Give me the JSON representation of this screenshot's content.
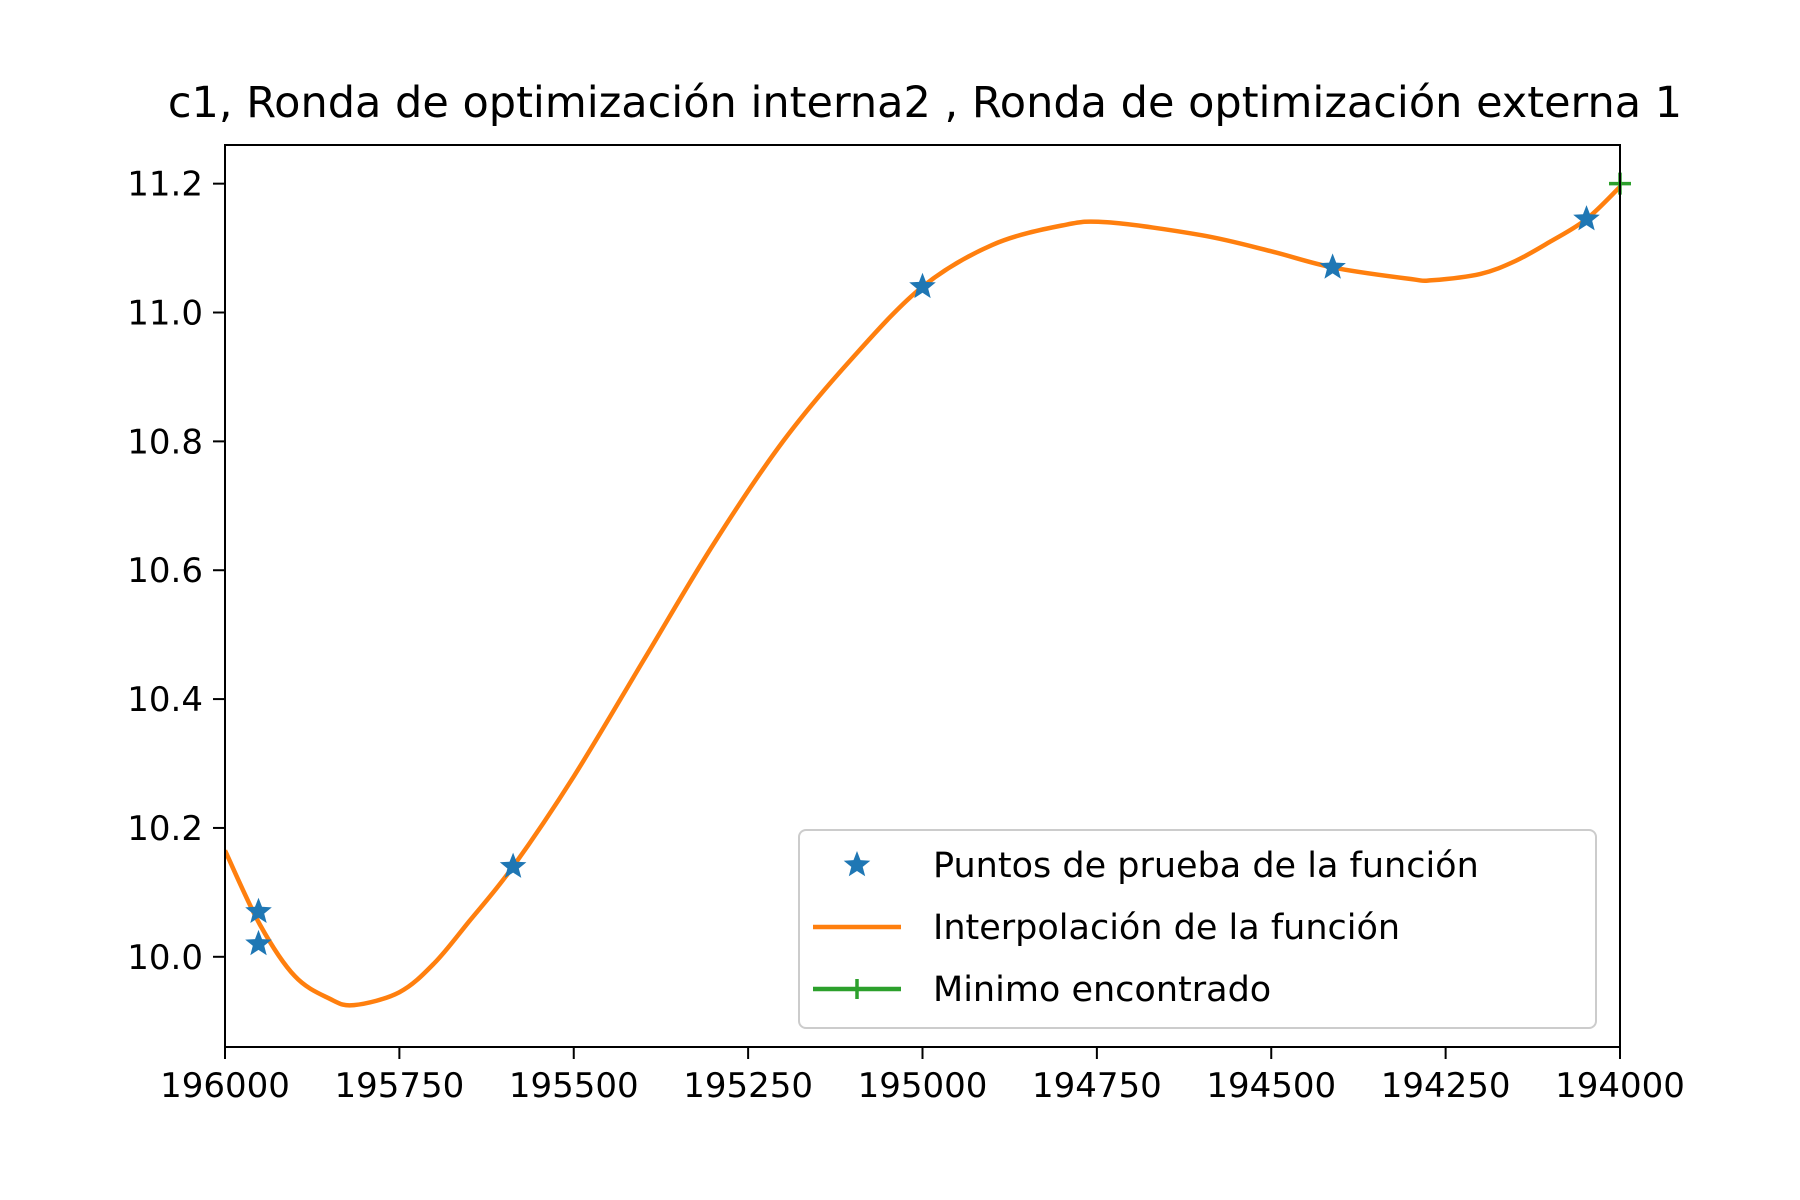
{
  "chart_data": {
    "type": "line",
    "title": "c1, Ronda de optimización interna2 , Ronda de optimización externa 1",
    "xlabel": "",
    "ylabel": "",
    "xlim": [
      196000,
      194000
    ],
    "ylim": [
      9.86,
      11.26
    ],
    "x_inverted": true,
    "grid": false,
    "legend_position": "lower-right",
    "x_ticks": [
      196000,
      195750,
      195500,
      195250,
      195000,
      194750,
      194500,
      194250,
      194000
    ],
    "x_tick_labels": [
      "196000",
      "195750",
      "195500",
      "195250",
      "195000",
      "194750",
      "194500",
      "194250",
      "194000"
    ],
    "y_ticks": [
      10.0,
      10.2,
      10.4,
      10.6,
      10.8,
      11.0,
      11.2
    ],
    "y_tick_labels": [
      "10.0",
      "10.2",
      "10.4",
      "10.6",
      "10.8",
      "11.0",
      "11.2"
    ],
    "series": [
      {
        "name": "Puntos de prueba de la función",
        "kind": "scatter",
        "marker": "star",
        "color": "#1f77b4",
        "points": [
          {
            "x": 195952,
            "y": 10.07
          },
          {
            "x": 195952,
            "y": 10.02
          },
          {
            "x": 195587,
            "y": 10.14
          },
          {
            "x": 195000,
            "y": 11.04
          },
          {
            "x": 194412,
            "y": 11.07
          },
          {
            "x": 194048,
            "y": 11.145
          }
        ]
      },
      {
        "name": "Interpolación de la función",
        "kind": "line",
        "color": "#ff7f0e",
        "points": [
          {
            "x": 196000,
            "y": 10.165
          },
          {
            "x": 195950,
            "y": 10.05
          },
          {
            "x": 195900,
            "y": 9.97
          },
          {
            "x": 195850,
            "y": 9.935
          },
          {
            "x": 195815,
            "y": 9.925
          },
          {
            "x": 195750,
            "y": 9.945
          },
          {
            "x": 195700,
            "y": 9.99
          },
          {
            "x": 195650,
            "y": 10.055
          },
          {
            "x": 195587,
            "y": 10.14
          },
          {
            "x": 195500,
            "y": 10.28
          },
          {
            "x": 195400,
            "y": 10.46
          },
          {
            "x": 195300,
            "y": 10.64
          },
          {
            "x": 195200,
            "y": 10.8
          },
          {
            "x": 195100,
            "y": 10.93
          },
          {
            "x": 195000,
            "y": 11.04
          },
          {
            "x": 194900,
            "y": 11.105
          },
          {
            "x": 194800,
            "y": 11.135
          },
          {
            "x": 194735,
            "y": 11.14
          },
          {
            "x": 194600,
            "y": 11.12
          },
          {
            "x": 194500,
            "y": 11.095
          },
          {
            "x": 194412,
            "y": 11.07
          },
          {
            "x": 194300,
            "y": 11.052
          },
          {
            "x": 194270,
            "y": 11.05
          },
          {
            "x": 194200,
            "y": 11.06
          },
          {
            "x": 194150,
            "y": 11.08
          },
          {
            "x": 194100,
            "y": 11.11
          },
          {
            "x": 194048,
            "y": 11.145
          },
          {
            "x": 194000,
            "y": 11.195
          }
        ]
      },
      {
        "name": "Minimo encontrado",
        "kind": "marker",
        "marker": "plus",
        "color": "#2ca02c",
        "points": [
          {
            "x": 194000,
            "y": 11.2
          }
        ]
      }
    ]
  }
}
